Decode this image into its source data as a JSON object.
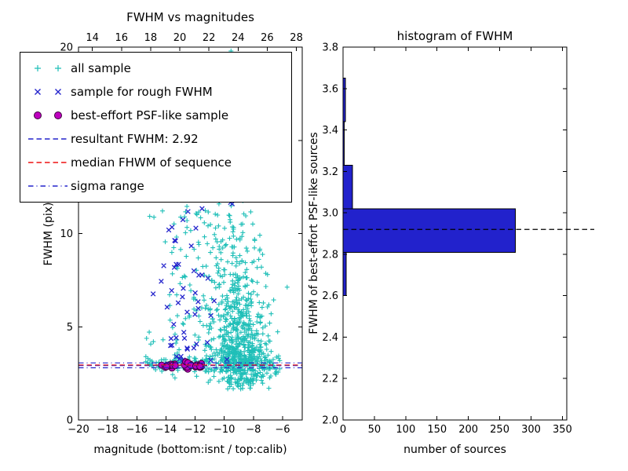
{
  "figure": {
    "background": "#ffffff"
  },
  "chart_data": [
    {
      "type": "scatter",
      "title": "FWHM vs magnitudes",
      "xlabel": "magnitude (bottom:isnt / top:calib)",
      "ylabel": "FWHM (pix)",
      "axes": {
        "xlim": [
          -20,
          -4.65
        ],
        "xlim_top": [
          13.05,
          28.4
        ],
        "ylim": [
          0,
          20
        ],
        "xticks_bottom": {
          "values": [
            -20,
            -18,
            -16,
            -14,
            -12,
            -10,
            -8,
            -6
          ],
          "labels": [
            "−20",
            "−18",
            "−16",
            "−14",
            "−12",
            "−10",
            "−8",
            "−6"
          ]
        },
        "xticks_top": {
          "values": [
            14,
            16,
            18,
            20,
            22,
            24,
            26,
            28
          ],
          "labels": [
            "14",
            "16",
            "18",
            "20",
            "22",
            "24",
            "26",
            "28"
          ]
        },
        "yticks": {
          "values": [
            0,
            5,
            10,
            15,
            20
          ],
          "labels": [
            "0",
            "5",
            "10",
            "15",
            "20"
          ]
        },
        "grid": false
      },
      "series": [
        {
          "name": "all sample",
          "marker": "plus",
          "color": "#1fbfb8",
          "seed": 11,
          "clusters": [
            {
              "n": 340,
              "x": [
                "n",
                -8.8,
                0.85
              ],
              "y": [
                "n",
                3.3,
                0.8
              ],
              "xclip": [
                -12.2,
                -5.3
              ],
              "yclip": [
                1.6,
                6.2
              ]
            },
            {
              "n": 240,
              "x": [
                "n",
                -9.0,
                1.05
              ],
              "y": [
                "n",
                5.6,
                1.4
              ],
              "xclip": [
                -12.6,
                -5.4
              ],
              "yclip": [
                2.6,
                9.6
              ]
            },
            {
              "n": 110,
              "x": [
                "n",
                -9.4,
                1.15
              ],
              "y": [
                "n",
                8.6,
                1.9
              ],
              "xclip": [
                -13.0,
                -6.0
              ],
              "yclip": [
                4.0,
                13.6
              ]
            },
            {
              "n": 190,
              "x": [
                "u",
                -15.4,
                -6.1
              ],
              "y": [
                "n",
                3.0,
                0.28
              ]
            },
            {
              "n": 55,
              "x": [
                "n",
                -9.7,
                0.5
              ],
              "y": [
                "u",
                9.5,
                19.9
              ]
            },
            {
              "n": 70,
              "x": [
                "u",
                -13.6,
                -10.2
              ],
              "y": [
                "u",
                3.4,
                12.0
              ]
            },
            {
              "n": 12,
              "x": [
                "u",
                -15.6,
                -13.7
              ],
              "y": [
                "u",
                4.0,
                11.5
              ]
            },
            {
              "n": 55,
              "x": [
                "n",
                -8.6,
                0.9
              ],
              "y": [
                "n",
                2.1,
                0.22
              ],
              "yclip": [
                1.5,
                2.6
              ]
            }
          ]
        },
        {
          "name": "sample for rough FWHM",
          "marker": "x",
          "color": "#2424cc",
          "seed": 23,
          "clusters": [
            {
              "n": 26,
              "x": [
                "n",
                -12.9,
                1.0
              ],
              "xclip": [
                -15.2,
                -10.6
              ],
              "y": [
                "u",
                3.2,
                7.0
              ]
            },
            {
              "n": 22,
              "x": [
                "n",
                -12.5,
                1.1
              ],
              "xclip": [
                -15.2,
                -10.4
              ],
              "y": [
                "u",
                7.0,
                12.3
              ]
            },
            {
              "n": 4,
              "x": [
                "n",
                -11.0,
                0.9
              ],
              "y": [
                "u",
                3.0,
                4.6
              ]
            },
            {
              "n": 3,
              "x": [
                "n",
                -9.6,
                0.3
              ],
              "y": [
                "u",
                10.8,
                12.0
              ]
            }
          ]
        },
        {
          "name": "best-effort PSF-like sample",
          "marker": "circle",
          "color": "#bf00bf",
          "edge": "#3c003c",
          "seed": 5,
          "clusters": [
            {
              "n": 30,
              "x": [
                "u",
                -14.35,
                -11.55
              ],
              "y": [
                "n",
                2.93,
                0.07
              ]
            }
          ]
        }
      ],
      "lines": [
        {
          "name": "resultant FWHM: 2.92",
          "y": 2.92,
          "color": "#2424cc",
          "dash": "dashed"
        },
        {
          "name": "median FHWM of sequence",
          "y": 2.95,
          "color": "#ee1111",
          "dash": "dashed"
        },
        {
          "name": "sigma range",
          "y": 2.8,
          "color": "#2424cc",
          "dash": "dashdot"
        },
        {
          "name": "sigma range",
          "y": 3.06,
          "color": "#2424cc",
          "dash": "dashdot"
        }
      ],
      "legend": {
        "position": "upper left",
        "items": [
          {
            "label": "all sample",
            "type": "scatter",
            "marker": "plus",
            "color": "#1fbfb8"
          },
          {
            "label": "sample for rough FWHM",
            "type": "scatter",
            "marker": "x",
            "color": "#2424cc"
          },
          {
            "label": "best-effort PSF-like sample",
            "type": "scatter",
            "marker": "circle",
            "color": "#bf00bf",
            "edge": "#3c003c"
          },
          {
            "label": "resultant FWHM: 2.92",
            "type": "line",
            "dash": "dashed",
            "color": "#2424cc"
          },
          {
            "label": "median FHWM of sequence",
            "type": "line",
            "dash": "dashed",
            "color": "#ee1111"
          },
          {
            "label": "sigma range",
            "type": "line",
            "dash": "dashdot",
            "color": "#2424cc"
          }
        ]
      }
    },
    {
      "type": "bar",
      "orientation": "horizontal",
      "title": "histogram of FWHM",
      "xlabel": "number of sources",
      "ylabel": "FWHM of best-effort PSF-like sources",
      "axes": {
        "xlim": [
          0,
          357
        ],
        "ylim": [
          2.0,
          3.8
        ],
        "xticks": {
          "values": [
            0,
            50,
            100,
            150,
            200,
            250,
            300,
            350
          ],
          "labels": [
            "0",
            "50",
            "100",
            "150",
            "200",
            "250",
            "300",
            "350"
          ]
        },
        "yticks": {
          "values": [
            2.0,
            2.2,
            2.4,
            2.6,
            2.8,
            3.0,
            3.2,
            3.4,
            3.6,
            3.8
          ],
          "labels": [
            "2.0",
            "2.2",
            "2.4",
            "2.6",
            "2.8",
            "3.0",
            "3.2",
            "3.4",
            "3.6",
            "3.8"
          ]
        },
        "grid": false
      },
      "bins": {
        "edges": [
          2.6,
          2.81,
          3.02,
          3.23,
          3.44,
          3.65
        ],
        "counts": [
          5,
          275,
          15,
          2,
          4
        ]
      },
      "bar_color": "#2222cc",
      "bar_edge": "#000000",
      "marker_line": {
        "y": 2.92,
        "color": "#000000",
        "dash": "dashed"
      }
    }
  ]
}
